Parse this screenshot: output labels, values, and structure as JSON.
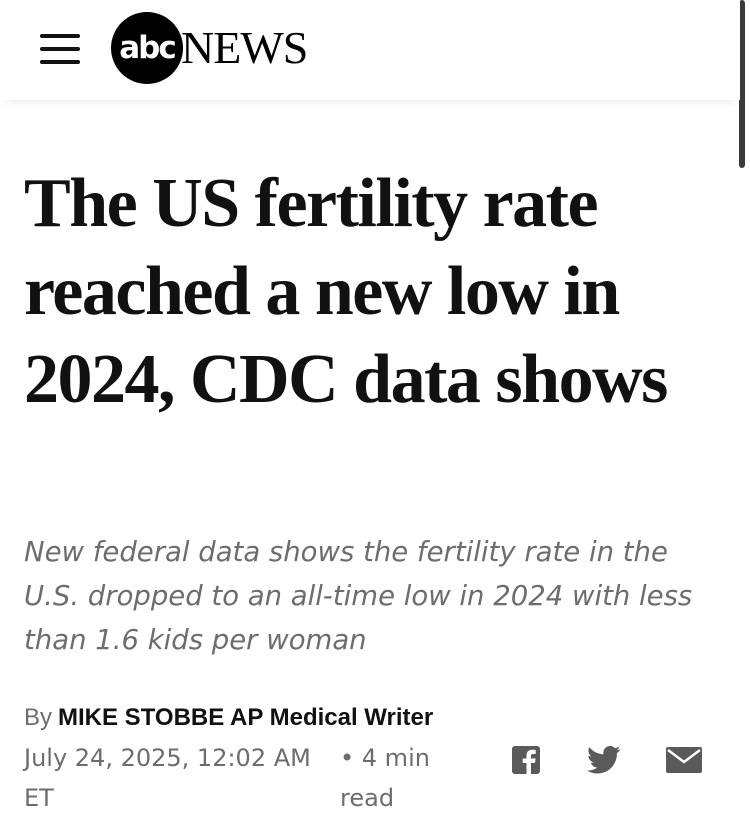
{
  "header": {
    "logo_abc": "abc",
    "logo_news": "NEWS"
  },
  "article": {
    "headline": "The US fertility rate reached a new low in 2024, CDC data shows",
    "subheadline": "New federal data shows the fertility rate in the U.S. dropped to an all-time low in 2024 with less than 1.6 kids per woman",
    "byline_prefix": "By",
    "author": "MIKE STOBBE AP Medical Writer",
    "date": "July 24, 2025, 12:02 AM ET",
    "read_time": "• 4 min read"
  },
  "share": {
    "icons": [
      "facebook-icon",
      "twitter-icon",
      "email-icon"
    ]
  },
  "colors": {
    "text": "#111111",
    "muted": "#6d6d6d",
    "background": "#ffffff"
  }
}
